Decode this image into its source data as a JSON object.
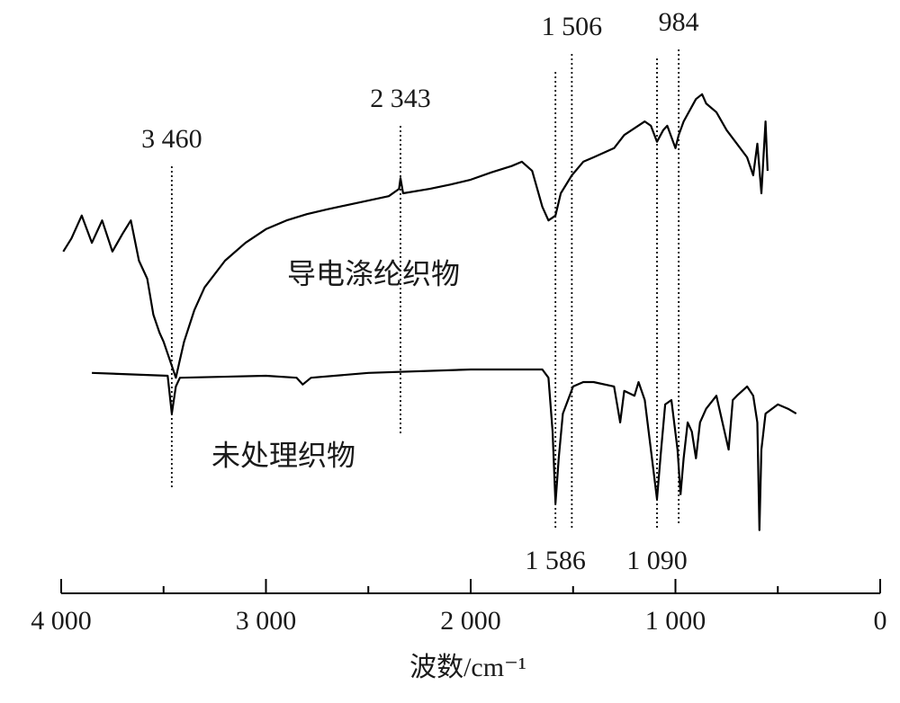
{
  "chart_data": {
    "type": "line",
    "x_label": "波数/cm⁻¹",
    "xlim": [
      4000,
      0
    ],
    "ylim": [
      0,
      100
    ],
    "xticks": [
      {
        "value": 4000,
        "label": "4 000"
      },
      {
        "value": 3000,
        "label": "3 000"
      },
      {
        "value": 2000,
        "label": "2 000"
      },
      {
        "value": 1000,
        "label": "1 000"
      },
      0
    ],
    "xminorticks": [
      3500,
      2500,
      1500,
      500
    ],
    "series": [
      {
        "name": "导电涤纶织物",
        "color": "#000000",
        "x": [
          3990,
          3950,
          3900,
          3850,
          3800,
          3750,
          3700,
          3660,
          3620,
          3580,
          3550,
          3520,
          3500,
          3470,
          3440,
          3420,
          3400,
          3350,
          3300,
          3200,
          3100,
          3000,
          2900,
          2800,
          2700,
          2600,
          2500,
          2400,
          2350,
          2343,
          2330,
          2200,
          2100,
          2000,
          1900,
          1800,
          1750,
          1700,
          1650,
          1620,
          1586,
          1560,
          1506,
          1450,
          1400,
          1300,
          1250,
          1150,
          1120,
          1090,
          1060,
          1040,
          1000,
          984,
          960,
          900,
          870,
          850,
          800,
          750,
          700,
          650,
          620,
          600,
          580,
          560,
          550
        ],
        "values": [
          59.3,
          62.0,
          66.7,
          61.1,
          65.7,
          59.3,
          63.0,
          65.7,
          57.4,
          53.7,
          46.3,
          42.6,
          40.7,
          37.0,
          33.3,
          37.0,
          40.7,
          47.2,
          51.9,
          57.4,
          61.1,
          63.9,
          65.7,
          67.0,
          68.0,
          68.9,
          69.8,
          70.7,
          72.2,
          74.4,
          71.3,
          72.2,
          73.1,
          74.1,
          75.6,
          76.9,
          77.8,
          75.9,
          68.5,
          65.7,
          66.7,
          71.3,
          75.0,
          77.8,
          78.7,
          80.6,
          83.3,
          86.1,
          85.2,
          81.9,
          84.3,
          85.2,
          80.6,
          83.3,
          86.1,
          90.7,
          91.7,
          89.8,
          88.0,
          84.3,
          81.5,
          78.7,
          75.0,
          81.5,
          71.3,
          86.1,
          75.9
        ]
      },
      {
        "name": "未处理织物",
        "color": "#000000",
        "x": [
          3850,
          3480,
          3460,
          3440,
          3420,
          3000,
          2850,
          2820,
          2780,
          2500,
          2000,
          1650,
          1620,
          1600,
          1586,
          1570,
          1550,
          1500,
          1450,
          1400,
          1300,
          1270,
          1250,
          1200,
          1180,
          1150,
          1120,
          1090,
          1070,
          1050,
          1020,
          990,
          975,
          960,
          940,
          920,
          900,
          880,
          850,
          800,
          740,
          720,
          700,
          650,
          620,
          600,
          590,
          580,
          560,
          500,
          450,
          410
        ],
        "values": [
          34.3,
          33.7,
          25.9,
          31.5,
          33.3,
          33.7,
          33.3,
          31.9,
          33.3,
          34.3,
          35.0,
          35.0,
          33.3,
          22.2,
          7.4,
          16.7,
          25.9,
          31.5,
          32.4,
          32.4,
          31.5,
          24.1,
          30.6,
          29.6,
          32.4,
          28.7,
          18.5,
          8.3,
          18.5,
          27.8,
          28.7,
          18.5,
          9.3,
          16.7,
          24.1,
          22.2,
          16.7,
          24.1,
          26.9,
          29.6,
          18.5,
          28.7,
          29.6,
          31.5,
          29.6,
          24.1,
          1.9,
          18.5,
          25.9,
          27.8,
          26.9,
          25.9
        ]
      }
    ],
    "annotations": [
      {
        "x": 3460,
        "label": "3 460",
        "label_position": "top"
      },
      {
        "x": 2343,
        "label": "2 343",
        "label_position": "top"
      },
      {
        "x": 1586,
        "label": "1 586",
        "label_position": "bottom"
      },
      {
        "x": 1506,
        "label": "1 506",
        "label_position": "top"
      },
      {
        "x": 1090,
        "label": "1 090",
        "label_position": "bottom"
      },
      {
        "x": 984,
        "label": "984",
        "label_position": "top"
      }
    ]
  }
}
